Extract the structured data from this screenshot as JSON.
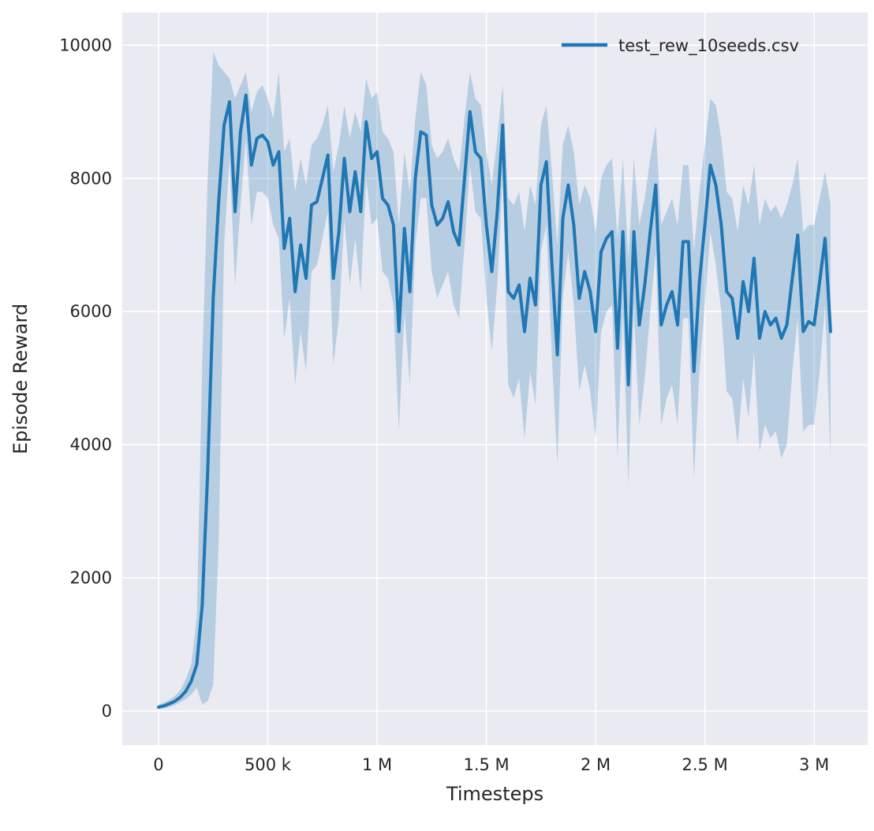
{
  "chart_data": {
    "type": "line",
    "title": "",
    "xlabel": "Timesteps",
    "ylabel": "Episode Reward",
    "xlim": [
      -166000,
      3245000
    ],
    "ylim": [
      -510,
      10490
    ],
    "x_ticks": [
      0,
      500000,
      1000000,
      1500000,
      2000000,
      2500000,
      3000000
    ],
    "x_tick_labels": [
      "0",
      "500 k",
      "1 M",
      "1.5 M",
      "2 M",
      "2.5 M",
      "3 M"
    ],
    "y_ticks": [
      0,
      2000,
      4000,
      6000,
      8000,
      10000
    ],
    "y_tick_labels": [
      "0",
      "2000",
      "4000",
      "6000",
      "8000",
      "10000"
    ],
    "grid": true,
    "legend": {
      "position": "upper right"
    },
    "colors": {
      "line": "#1f77b4",
      "band": "#1f77b4",
      "band_opacity": 0.25,
      "axes_bg": "#eaeaf2",
      "grid": "#ffffff",
      "text": "#262626",
      "figure_bg": "#ffffff"
    },
    "series": [
      {
        "name": "test_rew_10seeds.csv",
        "x": [
          0,
          25000,
          50000,
          75000,
          100000,
          125000,
          150000,
          175000,
          200000,
          225000,
          250000,
          275000,
          300000,
          325000,
          350000,
          375000,
          400000,
          425000,
          450000,
          475000,
          500000,
          525000,
          550000,
          575000,
          600000,
          625000,
          650000,
          675000,
          700000,
          725000,
          750000,
          775000,
          800000,
          825000,
          850000,
          875000,
          900000,
          925000,
          950000,
          975000,
          1000000,
          1025000,
          1050000,
          1075000,
          1100000,
          1125000,
          1150000,
          1175000,
          1200000,
          1225000,
          1250000,
          1275000,
          1300000,
          1325000,
          1350000,
          1375000,
          1400000,
          1425000,
          1450000,
          1475000,
          1500000,
          1525000,
          1550000,
          1575000,
          1600000,
          1625000,
          1650000,
          1675000,
          1700000,
          1725000,
          1750000,
          1775000,
          1800000,
          1825000,
          1850000,
          1875000,
          1900000,
          1925000,
          1950000,
          1975000,
          2000000,
          2025000,
          2050000,
          2075000,
          2100000,
          2125000,
          2150000,
          2175000,
          2200000,
          2225000,
          2250000,
          2275000,
          2300000,
          2325000,
          2350000,
          2375000,
          2400000,
          2425000,
          2450000,
          2475000,
          2500000,
          2525000,
          2550000,
          2575000,
          2600000,
          2625000,
          2650000,
          2675000,
          2700000,
          2725000,
          2750000,
          2775000,
          2800000,
          2825000,
          2850000,
          2875000,
          2900000,
          2925000,
          2950000,
          2975000,
          3000000,
          3025000,
          3050000,
          3075000
        ],
        "mean": [
          60,
          80,
          110,
          150,
          210,
          300,
          450,
          700,
          1600,
          3600,
          6200,
          7650,
          8800,
          9150,
          7500,
          8700,
          9250,
          8200,
          8600,
          8650,
          8550,
          8200,
          8400,
          6950,
          7400,
          6300,
          7000,
          6500,
          7600,
          7650,
          8000,
          8350,
          6500,
          7200,
          8300,
          7500,
          8100,
          7500,
          8850,
          8300,
          8400,
          7700,
          7600,
          7300,
          5700,
          7250,
          6300,
          8000,
          8700,
          8650,
          7600,
          7300,
          7400,
          7650,
          7200,
          7000,
          8000,
          9000,
          8400,
          8300,
          7300,
          6600,
          7500,
          8800,
          6300,
          6200,
          6400,
          5700,
          6500,
          6100,
          7900,
          8250,
          6700,
          5350,
          7400,
          7900,
          7300,
          6200,
          6600,
          6300,
          5700,
          6900,
          7100,
          7200,
          5450,
          7200,
          4900,
          7200,
          5800,
          6400,
          7200,
          7900,
          5800,
          6100,
          6300,
          5800,
          7050,
          7050,
          5100,
          6450,
          7300,
          8200,
          7900,
          7300,
          6300,
          6200,
          5600,
          6450,
          6000,
          6800,
          5600,
          6000,
          5800,
          5900,
          5600,
          5800,
          6500,
          7150,
          5700,
          5850,
          5800,
          6450,
          7100,
          5700
        ],
        "upper": [
          100,
          130,
          170,
          230,
          320,
          480,
          700,
          1400,
          5200,
          8000,
          9900,
          9700,
          9600,
          9500,
          9200,
          9400,
          9600,
          9000,
          9300,
          9400,
          9200,
          8900,
          9600,
          8400,
          8600,
          7800,
          8300,
          7900,
          8500,
          8600,
          8800,
          9100,
          8100,
          8500,
          9100,
          8600,
          9000,
          8700,
          9500,
          9200,
          9300,
          8700,
          8600,
          8400,
          7300,
          8400,
          7800,
          8900,
          9600,
          9400,
          8500,
          8300,
          8400,
          8600,
          8300,
          8100,
          8900,
          9600,
          9200,
          9100,
          8400,
          7900,
          8600,
          9400,
          7700,
          7600,
          7800,
          7200,
          7900,
          7600,
          8800,
          9100,
          8100,
          7000,
          8500,
          8800,
          8400,
          7600,
          7900,
          7700,
          7200,
          8000,
          8200,
          8300,
          7100,
          8300,
          6800,
          8300,
          7300,
          7700,
          8300,
          8800,
          7300,
          7500,
          7700,
          7300,
          8200,
          8200,
          6900,
          7800,
          8500,
          9200,
          9100,
          8600,
          7800,
          7700,
          7200,
          7900,
          7600,
          8200,
          7300,
          7700,
          7500,
          7600,
          7400,
          7600,
          7900,
          8300,
          7200,
          7300,
          7300,
          7700,
          8100,
          7600
        ],
        "lower": [
          30,
          40,
          60,
          90,
          130,
          180,
          250,
          350,
          100,
          150,
          400,
          2500,
          7000,
          8300,
          6400,
          7600,
          8600,
          7300,
          7800,
          7800,
          7700,
          7300,
          7100,
          5600,
          6200,
          4900,
          5700,
          5100,
          6600,
          6700,
          7100,
          7500,
          5200,
          5900,
          7400,
          6400,
          7100,
          6300,
          8000,
          7300,
          7400,
          6600,
          6500,
          6100,
          4200,
          6000,
          4900,
          7000,
          7700,
          7700,
          6600,
          6200,
          6400,
          6600,
          6100,
          5900,
          7000,
          8200,
          7500,
          7400,
          6200,
          5400,
          6400,
          8000,
          4900,
          4700,
          5000,
          4100,
          5100,
          4600,
          6900,
          7300,
          5300,
          3700,
          6200,
          6900,
          6100,
          4800,
          5200,
          4800,
          4100,
          5700,
          6000,
          6100,
          3800,
          6000,
          3400,
          6000,
          4300,
          5000,
          6000,
          6900,
          4300,
          4700,
          4900,
          4300,
          5900,
          5900,
          3500,
          5100,
          6100,
          7200,
          6700,
          6000,
          4800,
          4700,
          4000,
          5000,
          4400,
          5400,
          3900,
          4300,
          4100,
          4200,
          3800,
          4000,
          5100,
          5900,
          4200,
          4300,
          4300,
          5100,
          6100,
          3800
        ]
      }
    ]
  }
}
